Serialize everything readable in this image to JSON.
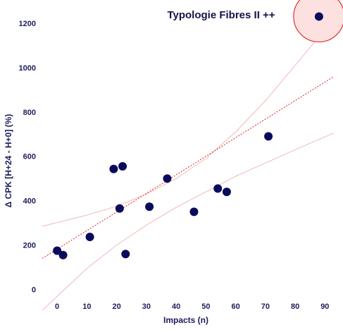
{
  "chart_data": {
    "type": "scatter",
    "title": "Typologie Fibres II ++",
    "xlabel": "Impacts (n)",
    "ylabel": "Δ CPK [H+24 - H+0] (%)",
    "xlim": [
      -5,
      93
    ],
    "ylim": [
      -30,
      1260
    ],
    "x_ticks": [
      0,
      10,
      20,
      30,
      40,
      50,
      60,
      70,
      80,
      90
    ],
    "y_ticks": [
      0,
      200,
      400,
      600,
      800,
      1000,
      1200
    ],
    "grid": false,
    "points": [
      {
        "x": 0,
        "y": 175
      },
      {
        "x": 2,
        "y": 155
      },
      {
        "x": 11,
        "y": 237
      },
      {
        "x": 19,
        "y": 543
      },
      {
        "x": 21,
        "y": 365
      },
      {
        "x": 22,
        "y": 555
      },
      {
        "x": 23,
        "y": 160
      },
      {
        "x": 31,
        "y": 373
      },
      {
        "x": 37,
        "y": 500
      },
      {
        "x": 46,
        "y": 350
      },
      {
        "x": 54,
        "y": 455
      },
      {
        "x": 57,
        "y": 440
      },
      {
        "x": 71,
        "y": 690
      },
      {
        "x": 88,
        "y": 1230
      }
    ],
    "highlighted_point": {
      "x": 88,
      "y": 1230
    },
    "regression_line": {
      "x": [
        -5,
        93
      ],
      "y": [
        140,
        960
      ]
    },
    "confidence_upper": {
      "x": [
        -5,
        10,
        20,
        30,
        40,
        50,
        60,
        70,
        80,
        93
      ],
      "y": [
        285,
        335,
        375,
        430,
        500,
        590,
        710,
        850,
        1010,
        1220
      ]
    },
    "confidence_lower": {
      "x": [
        -5,
        10,
        20,
        30,
        40,
        50,
        60,
        70,
        80,
        93
      ],
      "y": [
        -130,
        95,
        200,
        290,
        370,
        440,
        510,
        570,
        630,
        705
      ]
    },
    "colors": {
      "point": "#0a0a5c",
      "regression": "#e02020",
      "confidence": "#f2b8b8",
      "highlight_fill": "#fde0e0",
      "highlight_stroke": "#e03030",
      "text": "#1c1c5e"
    }
  }
}
